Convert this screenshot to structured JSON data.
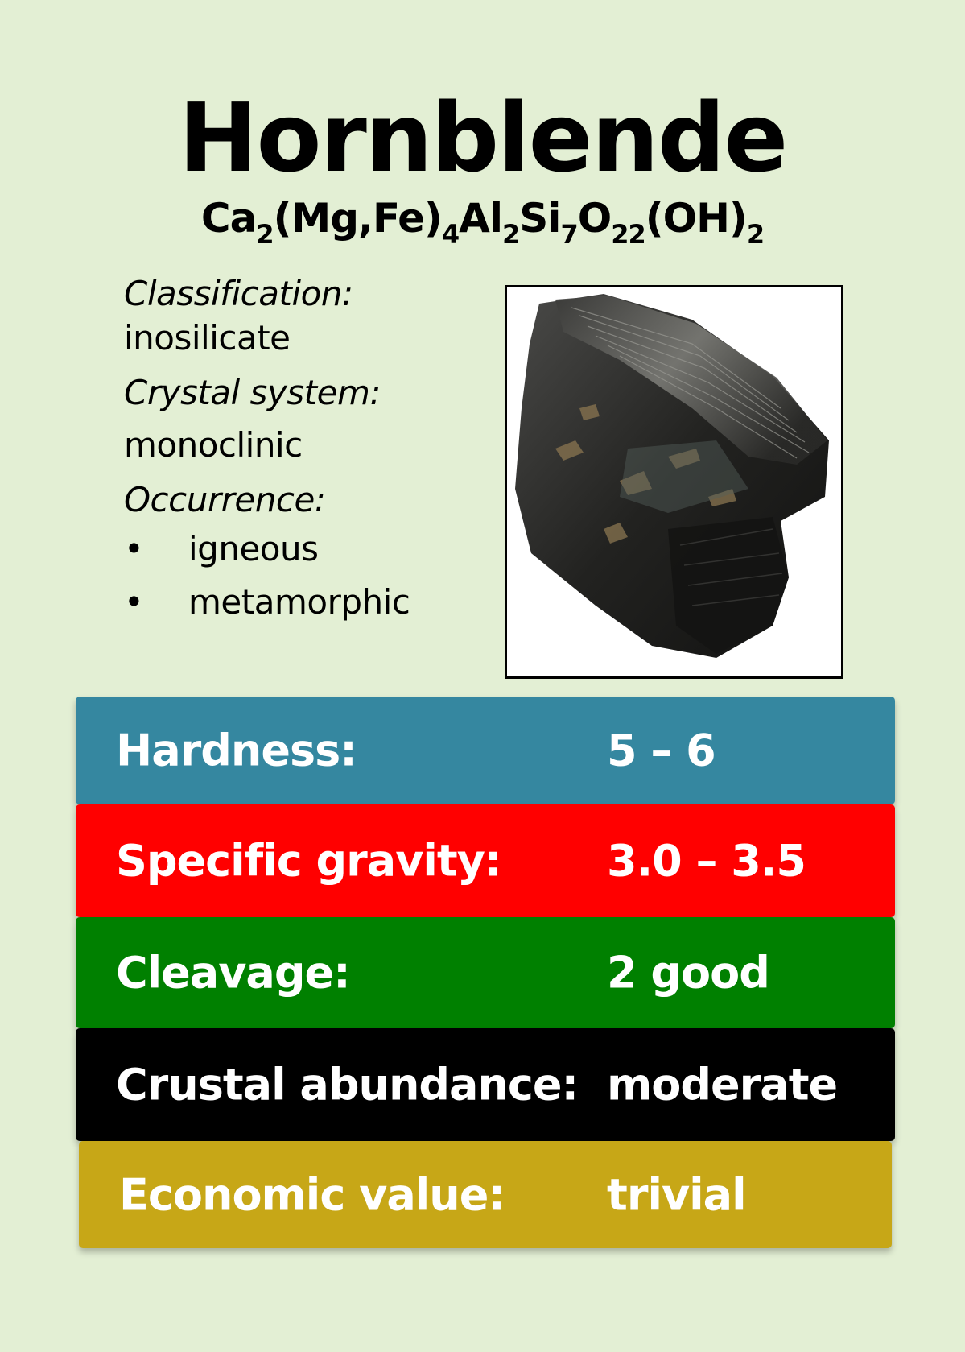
{
  "card": {
    "title": "Hornblende",
    "formula": {
      "parts": [
        {
          "text": "Ca",
          "sub": "2"
        },
        {
          "text": "(Mg,Fe)",
          "sub": "4"
        },
        {
          "text": "Al",
          "sub": "2"
        },
        {
          "text": "Si",
          "sub": "7"
        },
        {
          "text": "O",
          "sub": "22"
        },
        {
          "text": "(OH)",
          "sub": "2"
        }
      ]
    },
    "classification_label": "Classification:",
    "classification_value": "inosilicate",
    "crystal_system_label": "Crystal system:",
    "crystal_system_value": "monoclinic",
    "occurrence_label": "Occurrence:",
    "bullet_glyph": "•",
    "occurrence_items": [
      "igneous",
      "metamorphic"
    ],
    "properties": [
      {
        "label": "Hardness:",
        "value": "5 – 6",
        "color": "#3587a0"
      },
      {
        "label": "Specific gravity:",
        "value": "3.0 – 3.5",
        "color": "#ff0000"
      },
      {
        "label": "Cleavage:",
        "value": "2 good",
        "color": "#008000"
      },
      {
        "label": "Crustal abundance:",
        "value": "moderate",
        "color": "#000000"
      },
      {
        "label": "Economic value:",
        "value": "trivial",
        "color": "#c7a717"
      }
    ],
    "background_color": "#e3efd4",
    "photo_icon": "mineral-rock-photo"
  }
}
